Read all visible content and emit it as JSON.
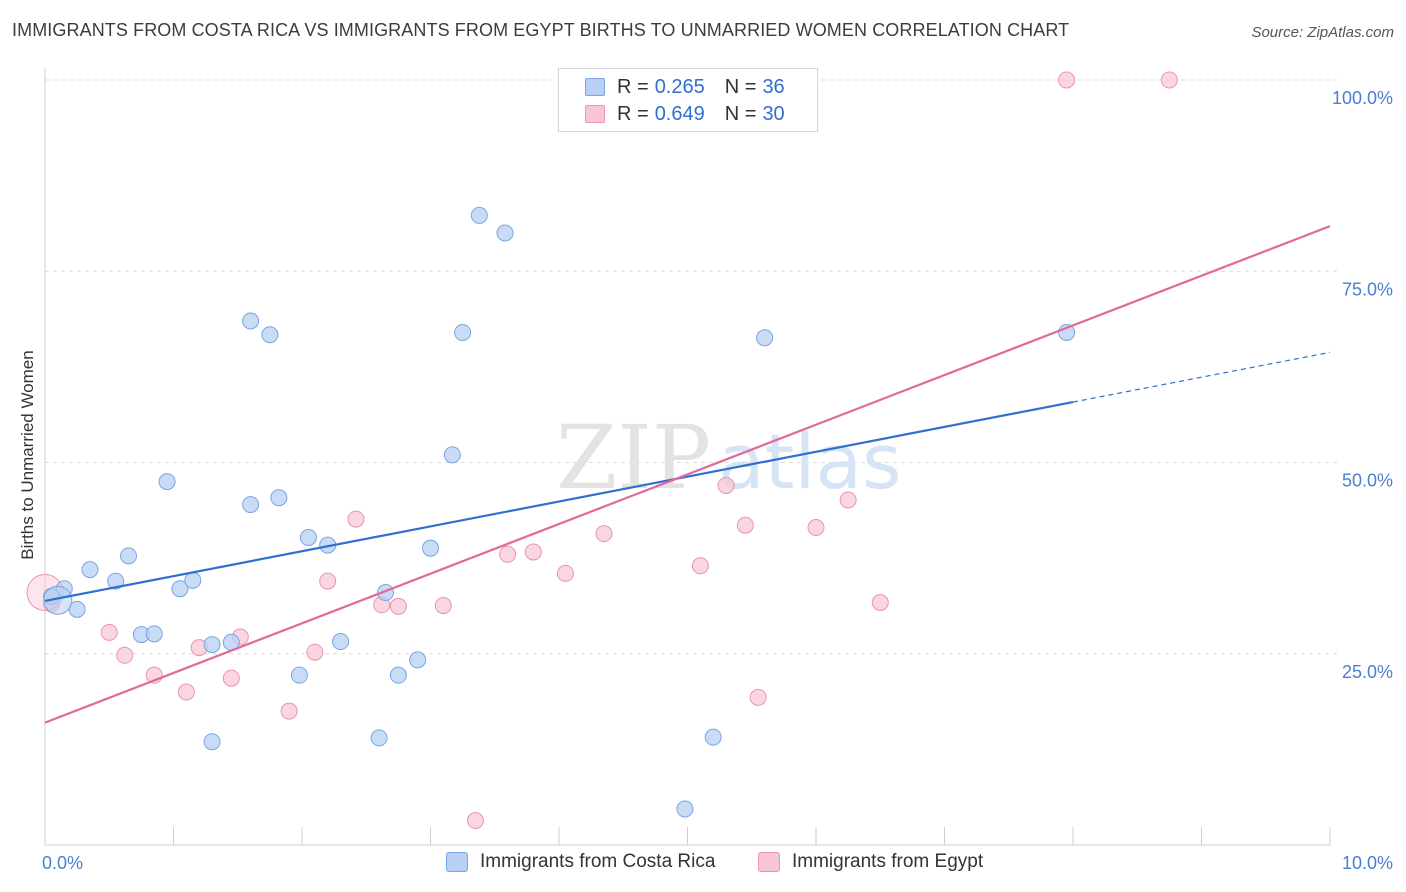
{
  "header": {
    "title": "IMMIGRANTS FROM COSTA RICA VS IMMIGRANTS FROM EGYPT BIRTHS TO UNMARRIED WOMEN CORRELATION CHART",
    "source": "Source: ZipAtlas.com"
  },
  "watermark": {
    "zip": "ZIP",
    "atlas": "atlas"
  },
  "legend": {
    "rows": [
      {
        "r_label": "R =",
        "r_value": "0.265",
        "n_label": "N =",
        "n_value": "36"
      },
      {
        "r_label": "R =",
        "r_value": "0.649",
        "n_label": "N =",
        "n_value": "30"
      }
    ]
  },
  "colors": {
    "costa_rica_fill": "#b7d0f3",
    "costa_rica_stroke": "#7aa5e0",
    "costa_rica_line": "#2f6fd0",
    "egypt_fill": "#f8c5d4",
    "egypt_stroke": "#ec93ad",
    "egypt_line": "#e2679a",
    "tick_label": "#4a7fd0",
    "grid": "#dcdcdc"
  },
  "chart_data": {
    "type": "scatter",
    "title": "IMMIGRANTS FROM COSTA RICA VS IMMIGRANTS FROM EGYPT BIRTHS TO UNMARRIED WOMEN CORRELATION CHART",
    "xlabel": "",
    "ylabel": "Births to Unmarried Women",
    "xlim": [
      0,
      10
    ],
    "ylim": [
      0,
      100
    ],
    "x_tick_labels": [
      "0.0%",
      "10.0%"
    ],
    "y_tick_labels": [
      "25.0%",
      "50.0%",
      "75.0%",
      "100.0%"
    ],
    "y_ticks": [
      25,
      50,
      75,
      100
    ],
    "grid": true,
    "legend_position": "top-center",
    "series": [
      {
        "name": "Immigrants from Costa Rica",
        "R": 0.265,
        "N": 36,
        "trendline": {
          "x_start": 0,
          "y_start": 31.9,
          "x_end": 8.0,
          "y_end": 57.9,
          "dashed_to_x": 10,
          "dashed_to_y": 64.4
        },
        "points": [
          [
            0.15,
            33.5
          ],
          [
            0.05,
            32.5
          ],
          [
            0.35,
            36.0
          ],
          [
            0.25,
            30.8
          ],
          [
            0.55,
            34.5
          ],
          [
            0.65,
            37.8
          ],
          [
            0.75,
            27.5
          ],
          [
            0.85,
            27.6
          ],
          [
            0.95,
            47.5
          ],
          [
            1.05,
            33.5
          ],
          [
            1.15,
            34.6
          ],
          [
            1.3,
            26.2
          ],
          [
            1.45,
            26.5
          ],
          [
            1.3,
            13.5
          ],
          [
            1.6,
            44.5
          ],
          [
            1.6,
            68.5
          ],
          [
            1.75,
            66.7
          ],
          [
            1.82,
            45.4
          ],
          [
            1.98,
            22.2
          ],
          [
            2.05,
            40.2
          ],
          [
            2.2,
            39.2
          ],
          [
            2.3,
            26.6
          ],
          [
            2.6,
            14.0
          ],
          [
            2.65,
            33.0
          ],
          [
            2.75,
            22.2
          ],
          [
            2.9,
            24.2
          ],
          [
            3.0,
            38.8
          ],
          [
            3.17,
            51.0
          ],
          [
            3.25,
            67.0
          ],
          [
            3.38,
            82.3
          ],
          [
            3.58,
            80.0
          ],
          [
            4.98,
            4.7
          ],
          [
            5.2,
            14.1
          ],
          [
            5.6,
            66.3
          ],
          [
            7.95,
            67.0
          ],
          [
            0.1,
            32.0
          ]
        ]
      },
      {
        "name": "Immigrants from Egypt",
        "R": 0.649,
        "N": 30,
        "trendline": {
          "x_start": 0,
          "y_start": 16.0,
          "x_end": 10,
          "y_end": 80.9
        },
        "points": [
          [
            0.05,
            31.5
          ],
          [
            0.5,
            27.8
          ],
          [
            0.62,
            24.8
          ],
          [
            0.85,
            22.2
          ],
          [
            1.1,
            20.0
          ],
          [
            1.2,
            25.8
          ],
          [
            1.45,
            21.8
          ],
          [
            1.52,
            27.2
          ],
          [
            1.9,
            17.5
          ],
          [
            2.1,
            25.2
          ],
          [
            2.2,
            34.5
          ],
          [
            2.42,
            42.6
          ],
          [
            2.62,
            31.4
          ],
          [
            2.75,
            31.2
          ],
          [
            3.1,
            31.3
          ],
          [
            3.35,
            3.2
          ],
          [
            3.6,
            38.0
          ],
          [
            3.8,
            38.3
          ],
          [
            4.05,
            35.5
          ],
          [
            4.35,
            40.7
          ],
          [
            5.1,
            36.5
          ],
          [
            5.3,
            47.0
          ],
          [
            5.45,
            41.8
          ],
          [
            5.55,
            19.3
          ],
          [
            6.0,
            41.5
          ],
          [
            6.25,
            45.1
          ],
          [
            6.5,
            31.7
          ],
          [
            7.95,
            100.0
          ],
          [
            8.75,
            100.0
          ],
          [
            0.0,
            33.0
          ]
        ]
      }
    ]
  }
}
